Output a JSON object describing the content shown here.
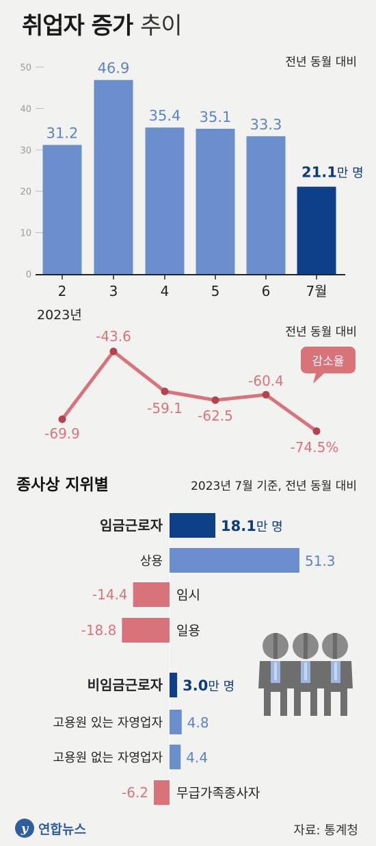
{
  "header": {
    "title_bold": "취업자 증가",
    "title_light": "추이"
  },
  "top_chart_note": "전년 동월 대비",
  "line_chart_note": "전년 동월 대비",
  "decline_badge": "감소율",
  "year_label": "2023년",
  "section": {
    "title": "종사상 지위별",
    "note": "2023년 7월 기준, 전년 동월 대비"
  },
  "colors": {
    "bar_light": "#6a8fcc",
    "bar_dark": "#0d4088",
    "line_red": "#d9737a",
    "text_blue": "#5c84c5",
    "text_red": "#d9737a",
    "text_dark_blue": "#0d3c7e"
  },
  "chart_data": [
    {
      "type": "bar",
      "categories": [
        "2",
        "3",
        "4",
        "5",
        "6",
        "7월"
      ],
      "values": [
        31.2,
        46.9,
        35.4,
        35.1,
        33.3,
        21.1
      ],
      "value_labels": [
        "31.2",
        "46.9",
        "35.4",
        "35.1",
        "33.3",
        "21.1"
      ],
      "highlight_unit": "만 명",
      "yticks": [
        "0",
        "10",
        "20",
        "30",
        "40",
        "50"
      ],
      "ylim": [
        0,
        50
      ]
    },
    {
      "type": "line",
      "x": [
        "2",
        "3",
        "4",
        "5",
        "6",
        "7월"
      ],
      "values": [
        -69.9,
        -43.6,
        -59.1,
        -62.5,
        -60.4,
        -74.5
      ],
      "value_labels": [
        "-69.9",
        "-43.6",
        "-59.1",
        "-62.5",
        "-60.4",
        "-74.5%"
      ]
    },
    {
      "type": "bar",
      "orientation": "horizontal",
      "categories": [
        "임금근로자",
        "상용",
        "임시",
        "일용",
        "비임금근로자",
        "고용원 있는 자영업자",
        "고용원 없는 자영업자",
        "무급가족종사자"
      ],
      "values": [
        18.1,
        51.3,
        -14.4,
        -18.8,
        3.0,
        4.8,
        4.4,
        -6.2
      ],
      "value_labels": [
        "18.1",
        "51.3",
        "-14.4",
        "-18.8",
        "3.0",
        "4.8",
        "4.4",
        "-6.2"
      ],
      "unit": "만 명",
      "emphasized": [
        "임금근로자",
        "비임금근로자"
      ]
    }
  ],
  "footer": {
    "logo_mark": "y",
    "logo_text": "연합뉴스",
    "source": "자료: 통계청"
  }
}
